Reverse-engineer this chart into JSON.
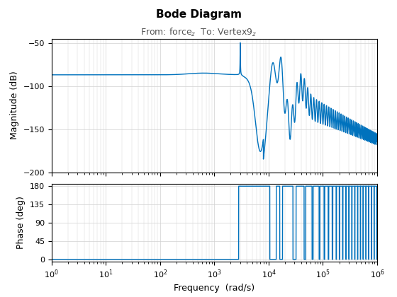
{
  "title": "Bode Diagram",
  "subtitle": "From: force$_z$  To: Vertex9$_z$",
  "xlabel": "Frequency  (rad/s)",
  "ylabel_mag": "Magnitude (dB)",
  "ylabel_phase": "Phase (deg)",
  "line_color": "#0072BD",
  "line_width": 1.0,
  "mag_ylim": [
    -200,
    -45
  ],
  "phase_ylim": [
    -5,
    185
  ],
  "freq_xlim": [
    1,
    1000000
  ],
  "mag_yticks": [
    -200,
    -150,
    -100,
    -50
  ],
  "phase_yticks": [
    0,
    45,
    90,
    135,
    180
  ],
  "background_color": "#ffffff",
  "grid_color": "#d0d0d0"
}
